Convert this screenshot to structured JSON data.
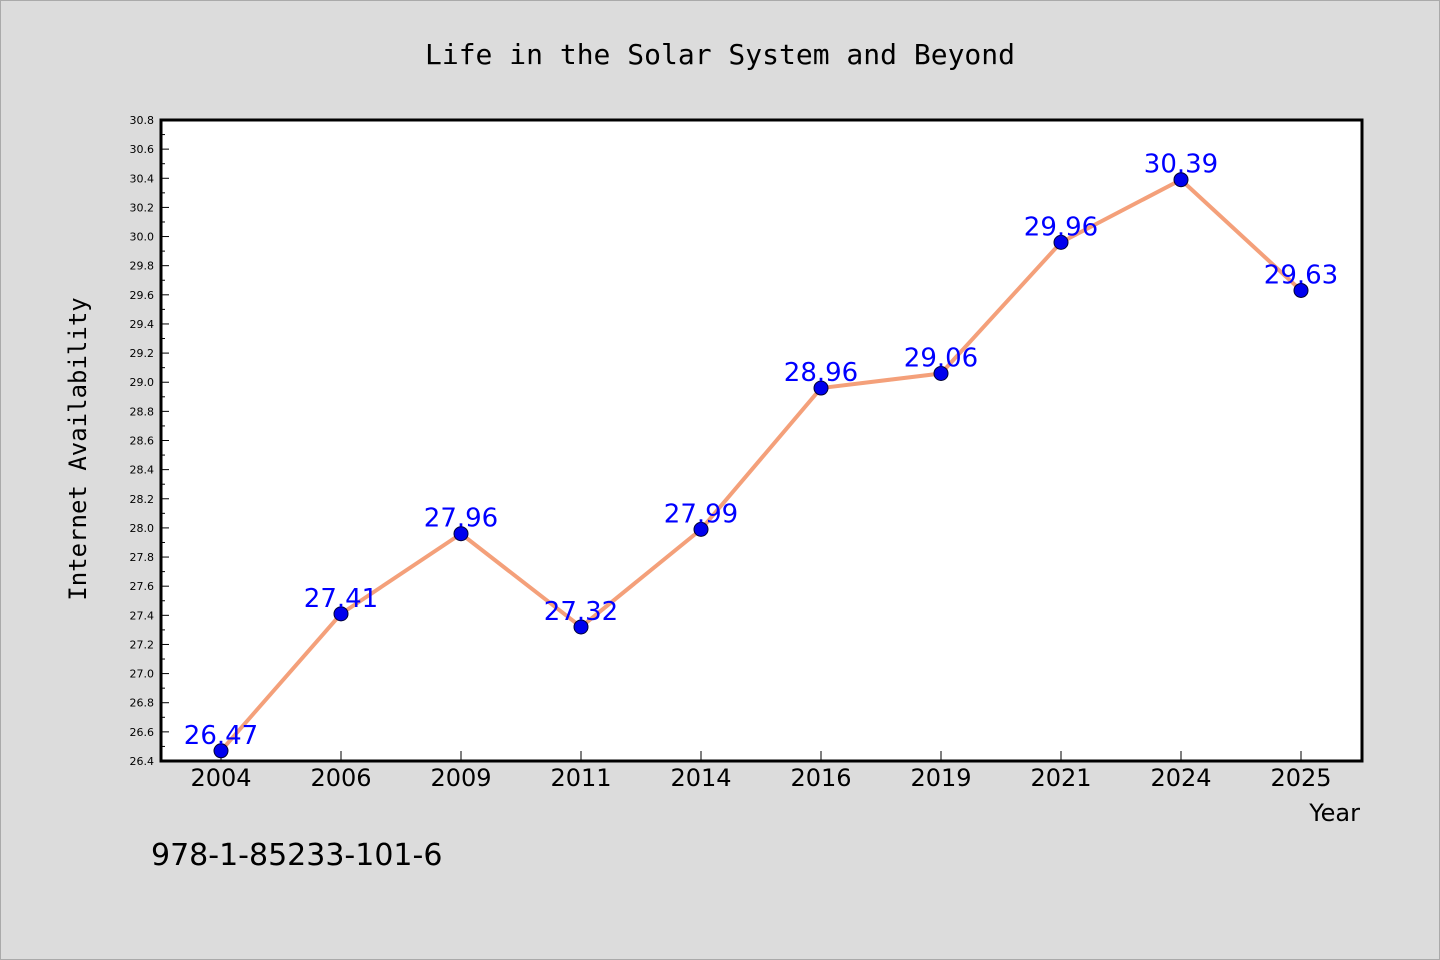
{
  "chart_data": {
    "type": "line",
    "title": "Life in the Solar System and Beyond",
    "xlabel": "Year",
    "ylabel": "Internet Availability",
    "categories": [
      "2004",
      "2006",
      "2009",
      "2011",
      "2014",
      "2016",
      "2019",
      "2021",
      "2024",
      "2025"
    ],
    "series": [
      {
        "values": [
          26.47,
          27.41,
          27.96,
          27.32,
          27.99,
          28.96,
          29.06,
          29.96,
          30.39,
          29.63
        ],
        "labels": [
          "26.47",
          "27.41",
          "27.96",
          "27.32",
          "27.99",
          "28.96",
          "29.06",
          "29.96",
          "30.39",
          "29.63"
        ],
        "line_color": "#f4a07a",
        "marker_color": "#0000ee"
      }
    ],
    "ylim": [
      26.4,
      30.8
    ],
    "yticks": [
      "26.4",
      "26.6",
      "26.8",
      "27.0",
      "27.2",
      "27.4",
      "27.6",
      "27.8",
      "28.0",
      "28.2",
      "28.4",
      "28.6",
      "28.8",
      "29.0",
      "29.2",
      "29.4",
      "29.6",
      "29.8",
      "30.0",
      "30.2",
      "30.4",
      "30.6",
      "30.8"
    ],
    "grid": false,
    "legend": "none"
  },
  "footer": {
    "isbn": "978-1-85233-101-6"
  }
}
